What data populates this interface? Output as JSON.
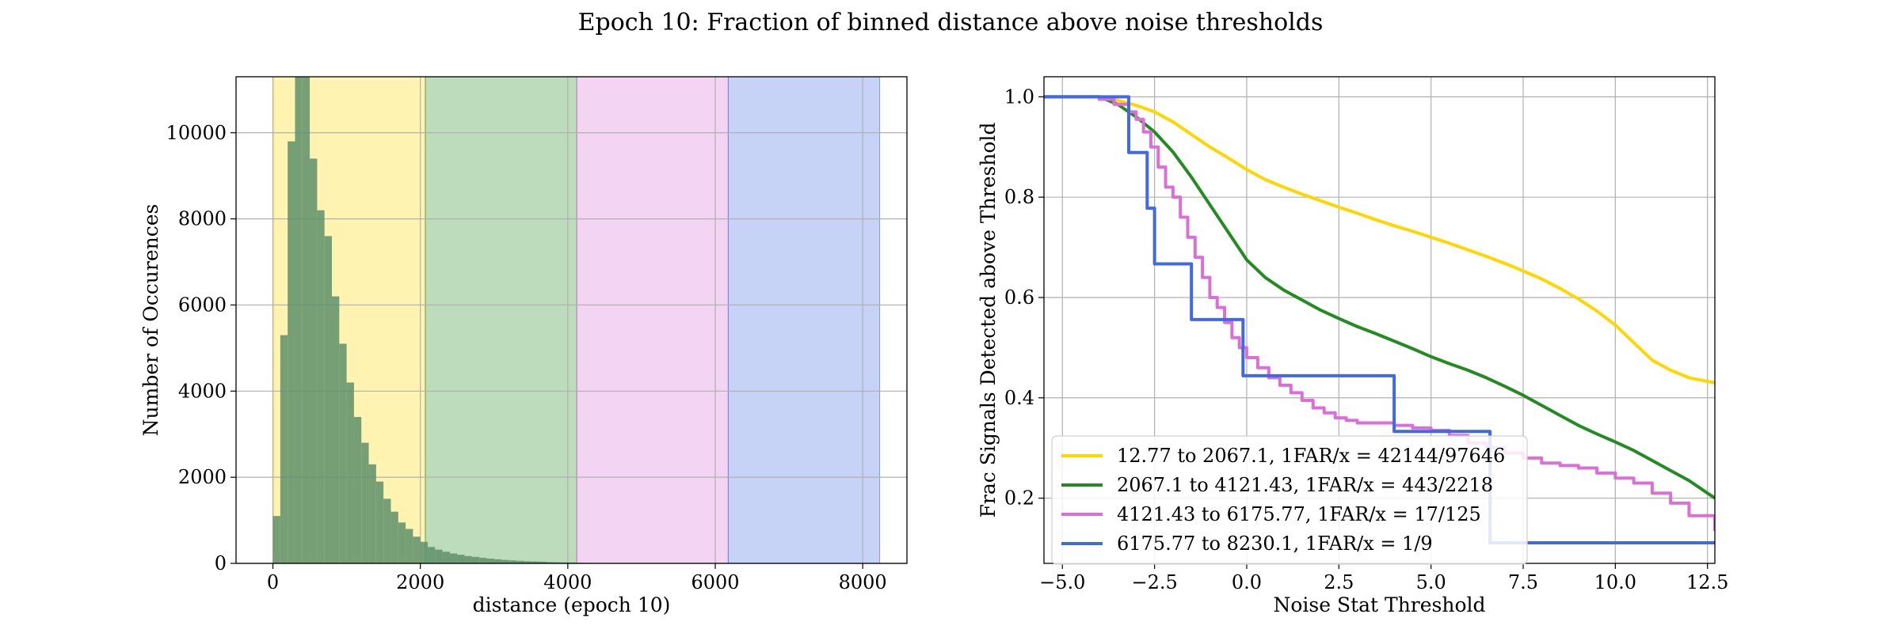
{
  "suptitle": "Epoch 10: Fraction of binned distance above noise thresholds",
  "chart_data": [
    {
      "type": "bar",
      "xlabel": "distance (epoch 10)",
      "ylabel": "Number of Occurences",
      "xlim": [
        -500,
        8600
      ],
      "ylim": [
        0,
        11300
      ],
      "xticks": [
        0,
        2000,
        4000,
        6000,
        8000
      ],
      "yticks": [
        0,
        2000,
        4000,
        6000,
        8000,
        10000
      ],
      "grid": true,
      "bands": [
        {
          "from": 12.77,
          "to": 2067.1,
          "color": "#ffd700"
        },
        {
          "from": 2067.1,
          "to": 4121.43,
          "color": "#228b22"
        },
        {
          "from": 4121.43,
          "to": 6175.77,
          "color": "#da70d6"
        },
        {
          "from": 6175.77,
          "to": 8230.1,
          "color": "#4169e1"
        }
      ],
      "bin_width": 100,
      "bin_starts": [
        0,
        100,
        200,
        300,
        400,
        500,
        600,
        700,
        800,
        900,
        1000,
        1100,
        1200,
        1300,
        1400,
        1500,
        1600,
        1700,
        1800,
        1900,
        2000,
        2100,
        2200,
        2300,
        2400,
        2500,
        2600,
        2700,
        2800,
        2900,
        3000,
        3100,
        3200,
        3300,
        3400,
        3500,
        3600,
        3700,
        3800,
        3900,
        4000,
        4100,
        4200,
        4300,
        4400,
        4500
      ],
      "values": [
        1100,
        5300,
        9800,
        11300,
        11300,
        9400,
        8200,
        7600,
        6200,
        5100,
        4200,
        3400,
        2800,
        2300,
        1900,
        1500,
        1200,
        950,
        800,
        620,
        500,
        380,
        320,
        270,
        230,
        200,
        170,
        150,
        130,
        110,
        95,
        80,
        70,
        60,
        50,
        45,
        40,
        30,
        25,
        22,
        20,
        15,
        12,
        10,
        8,
        6
      ],
      "bar_color": "#5f8f6a"
    },
    {
      "type": "line",
      "xlabel": "Noise Stat Threshold",
      "ylabel": "Frac Signals Detected above Threshold",
      "xlim": [
        -5.5,
        12.7
      ],
      "ylim": [
        0.07,
        1.04
      ],
      "xticks": [
        -5.0,
        -2.5,
        0.0,
        2.5,
        5.0,
        7.5,
        10.0,
        12.5
      ],
      "xtick_labels": [
        "−5.0",
        "−2.5",
        "0.0",
        "2.5",
        "5.0",
        "7.5",
        "10.0",
        "12.5"
      ],
      "yticks": [
        0.2,
        0.4,
        0.6,
        0.8,
        1.0
      ],
      "ytick_labels": [
        "0.2",
        "0.4",
        "0.6",
        "0.8",
        "1.0"
      ],
      "grid": true,
      "legend_position": "lower-left",
      "series": [
        {
          "name": "12.77 to 2067.1, 1FAR/x = 42144/97646",
          "color": "#ffd700",
          "step": false,
          "x": [
            -5.5,
            -4.0,
            -3.5,
            -3.0,
            -2.5,
            -2.0,
            -1.5,
            -1.0,
            -0.5,
            0.0,
            0.5,
            1.0,
            1.5,
            2.0,
            2.5,
            3.0,
            3.5,
            4.0,
            4.5,
            5.0,
            5.5,
            6.0,
            6.5,
            7.0,
            7.5,
            8.0,
            8.5,
            9.0,
            9.5,
            10.0,
            10.5,
            11.0,
            11.5,
            12.0,
            12.7
          ],
          "y": [
            1.0,
            1.0,
            0.993,
            0.983,
            0.97,
            0.95,
            0.925,
            0.9,
            0.878,
            0.855,
            0.835,
            0.82,
            0.806,
            0.793,
            0.78,
            0.768,
            0.755,
            0.743,
            0.732,
            0.72,
            0.708,
            0.695,
            0.682,
            0.668,
            0.653,
            0.637,
            0.618,
            0.597,
            0.573,
            0.545,
            0.51,
            0.475,
            0.455,
            0.44,
            0.43
          ]
        },
        {
          "name": "2067.1 to 4121.43, 1FAR/x = 443/2218",
          "color": "#228b22",
          "step": false,
          "x": [
            -5.5,
            -4.0,
            -3.5,
            -3.0,
            -2.5,
            -2.0,
            -1.5,
            -1.0,
            -0.5,
            0.0,
            0.5,
            1.0,
            1.5,
            2.0,
            2.5,
            3.0,
            3.5,
            4.0,
            4.5,
            5.0,
            5.5,
            6.0,
            6.5,
            7.0,
            7.5,
            8.0,
            8.5,
            9.0,
            9.5,
            10.0,
            10.5,
            11.0,
            11.5,
            12.0,
            12.7
          ],
          "y": [
            1.0,
            1.0,
            0.985,
            0.96,
            0.93,
            0.89,
            0.84,
            0.785,
            0.73,
            0.675,
            0.64,
            0.615,
            0.595,
            0.575,
            0.558,
            0.542,
            0.528,
            0.513,
            0.498,
            0.482,
            0.468,
            0.455,
            0.44,
            0.423,
            0.405,
            0.385,
            0.365,
            0.345,
            0.328,
            0.312,
            0.295,
            0.275,
            0.255,
            0.235,
            0.2
          ]
        },
        {
          "name": "4121.43 to 6175.77, 1FAR/x = 17/125",
          "color": "#da70d6",
          "step": true,
          "x": [
            -5.5,
            -4.5,
            -4.0,
            -3.6,
            -3.2,
            -3.0,
            -2.8,
            -2.6,
            -2.4,
            -2.2,
            -2.0,
            -1.8,
            -1.6,
            -1.4,
            -1.2,
            -1.0,
            -0.8,
            -0.6,
            -0.4,
            -0.2,
            0.0,
            0.3,
            0.6,
            0.9,
            1.2,
            1.5,
            1.8,
            2.1,
            2.4,
            2.7,
            3.0,
            3.5,
            4.0,
            4.5,
            5.0,
            5.5,
            6.0,
            6.5,
            7.0,
            7.5,
            8.0,
            8.5,
            9.0,
            9.5,
            10.0,
            10.5,
            11.0,
            11.5,
            12.0,
            12.7
          ],
          "y": [
            1.0,
            1.0,
            0.995,
            0.985,
            0.97,
            0.955,
            0.93,
            0.9,
            0.86,
            0.82,
            0.8,
            0.76,
            0.72,
            0.68,
            0.64,
            0.6,
            0.58,
            0.55,
            0.52,
            0.5,
            0.48,
            0.46,
            0.44,
            0.425,
            0.41,
            0.395,
            0.38,
            0.37,
            0.36,
            0.355,
            0.35,
            0.35,
            0.345,
            0.34,
            0.335,
            0.325,
            0.31,
            0.3,
            0.29,
            0.28,
            0.27,
            0.265,
            0.26,
            0.25,
            0.24,
            0.23,
            0.21,
            0.19,
            0.165,
            0.135
          ]
        },
        {
          "name": "6175.77 to 8230.1, 1FAR/x = 1/9",
          "color": "#4169e1",
          "step": true,
          "x": [
            -5.5,
            -3.2,
            -2.7,
            -2.5,
            -1.5,
            -0.1,
            4.0,
            6.6,
            12.7
          ],
          "y": [
            1.0,
            0.889,
            0.778,
            0.667,
            0.556,
            0.444,
            0.333,
            0.111,
            0.111
          ]
        }
      ]
    }
  ]
}
